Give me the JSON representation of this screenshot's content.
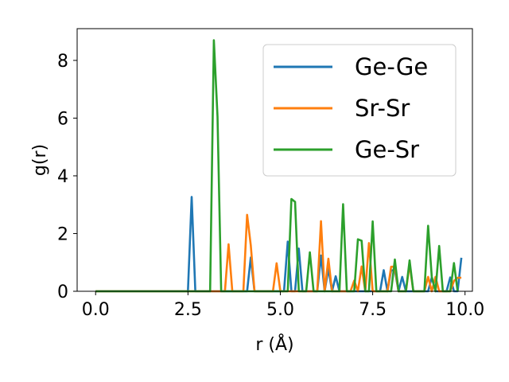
{
  "chart_data": {
    "type": "line",
    "title": "",
    "xlabel": "r (Å)",
    "ylabel": "g(r)",
    "xlim": [
      -0.5,
      10.2
    ],
    "ylim": [
      0,
      9.1
    ],
    "xticks": [
      0.0,
      2.5,
      5.0,
      7.5,
      10.0
    ],
    "xtick_labels": [
      "0.0",
      "2.5",
      "5.0",
      "7.5",
      "10.0"
    ],
    "yticks": [
      0,
      2,
      4,
      6,
      8
    ],
    "ytick_labels": [
      "0",
      "2",
      "4",
      "6",
      "8"
    ],
    "grid": false,
    "legend_position": "top-right",
    "series": [
      {
        "name": "Ge-Ge",
        "color": "#1f77b4",
        "points": [
          [
            0,
            0
          ],
          [
            2.5,
            0
          ],
          [
            2.6,
            3.27
          ],
          [
            2.7,
            0
          ],
          [
            4.1,
            0
          ],
          [
            4.2,
            1.17
          ],
          [
            4.3,
            0
          ],
          [
            5.1,
            0
          ],
          [
            5.2,
            1.72
          ],
          [
            5.3,
            0
          ],
          [
            5.4,
            0
          ],
          [
            5.5,
            1.48
          ],
          [
            5.6,
            0
          ],
          [
            6.0,
            0
          ],
          [
            6.1,
            1.24
          ],
          [
            6.2,
            0
          ],
          [
            6.3,
            0.78
          ],
          [
            6.4,
            0
          ],
          [
            6.5,
            0.52
          ],
          [
            6.6,
            0
          ],
          [
            7.7,
            0
          ],
          [
            7.8,
            0.73
          ],
          [
            7.9,
            0
          ],
          [
            8.0,
            0.73
          ],
          [
            8.1,
            0.72
          ],
          [
            8.2,
            0
          ],
          [
            8.3,
            0.5
          ],
          [
            8.4,
            0
          ],
          [
            9.0,
            0
          ],
          [
            9.1,
            0.48
          ],
          [
            9.2,
            0
          ],
          [
            9.5,
            0
          ],
          [
            9.6,
            0.48
          ],
          [
            9.7,
            0
          ],
          [
            9.8,
            0
          ],
          [
            9.9,
            1.16
          ]
        ]
      },
      {
        "name": "Sr-Sr",
        "color": "#ff7f0e",
        "points": [
          [
            0,
            0
          ],
          [
            3.5,
            0
          ],
          [
            3.6,
            1.63
          ],
          [
            3.7,
            0
          ],
          [
            4.0,
            0
          ],
          [
            4.1,
            2.65
          ],
          [
            4.2,
            1.6
          ],
          [
            4.3,
            0
          ],
          [
            4.8,
            0
          ],
          [
            4.9,
            0.97
          ],
          [
            5.0,
            0
          ],
          [
            6.0,
            0
          ],
          [
            6.1,
            2.43
          ],
          [
            6.2,
            0
          ],
          [
            6.3,
            1.13
          ],
          [
            6.4,
            0
          ],
          [
            6.9,
            0
          ],
          [
            7.0,
            0.37
          ],
          [
            7.1,
            0
          ],
          [
            7.2,
            0.86
          ],
          [
            7.3,
            0
          ],
          [
            7.4,
            1.67
          ],
          [
            7.5,
            0
          ],
          [
            7.9,
            0
          ],
          [
            8.0,
            0.85
          ],
          [
            8.1,
            0.85
          ],
          [
            8.2,
            0
          ],
          [
            8.4,
            0
          ],
          [
            8.5,
            0.94
          ],
          [
            8.6,
            0
          ],
          [
            8.9,
            0
          ],
          [
            9.0,
            0.5
          ],
          [
            9.1,
            0
          ],
          [
            9.2,
            0.5
          ],
          [
            9.3,
            0
          ],
          [
            9.6,
            0
          ],
          [
            9.7,
            0.36
          ],
          [
            9.8,
            0.47
          ],
          [
            9.9,
            0.47
          ]
        ]
      },
      {
        "name": "Ge-Sr",
        "color": "#2ca02c",
        "points": [
          [
            0,
            0
          ],
          [
            3.1,
            0
          ],
          [
            3.2,
            8.7
          ],
          [
            3.3,
            6.05
          ],
          [
            3.4,
            0
          ],
          [
            5.2,
            0
          ],
          [
            5.3,
            3.2
          ],
          [
            5.4,
            3.1
          ],
          [
            5.5,
            0
          ],
          [
            5.7,
            0
          ],
          [
            5.8,
            1.35
          ],
          [
            5.9,
            0
          ],
          [
            6.6,
            0
          ],
          [
            6.7,
            3.02
          ],
          [
            6.8,
            0
          ],
          [
            7.0,
            0
          ],
          [
            7.1,
            1.8
          ],
          [
            7.2,
            1.75
          ],
          [
            7.3,
            0
          ],
          [
            7.4,
            0
          ],
          [
            7.5,
            2.42
          ],
          [
            7.6,
            0
          ],
          [
            8.0,
            0
          ],
          [
            8.1,
            1.1
          ],
          [
            8.2,
            0
          ],
          [
            8.4,
            0
          ],
          [
            8.5,
            1.07
          ],
          [
            8.6,
            0
          ],
          [
            8.9,
            0
          ],
          [
            9.0,
            2.27
          ],
          [
            9.1,
            0.5
          ],
          [
            9.2,
            0
          ],
          [
            9.3,
            1.57
          ],
          [
            9.4,
            0
          ],
          [
            9.6,
            0
          ],
          [
            9.7,
            0.98
          ],
          [
            9.8,
            0
          ]
        ]
      }
    ]
  }
}
